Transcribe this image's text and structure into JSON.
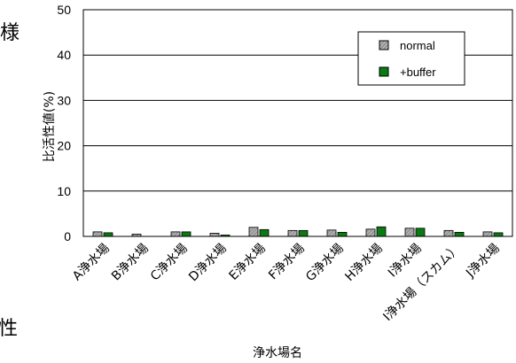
{
  "page": {
    "edge_text_top": "様",
    "edge_text_bottom": "性"
  },
  "chart_data": {
    "type": "bar",
    "xlabel": "浄水場名",
    "ylabel": "比活性値(%)",
    "ylim": [
      0,
      50
    ],
    "yticks": [
      "0",
      "10",
      "20",
      "30",
      "40",
      "50"
    ],
    "grid": true,
    "legend_position": "top-right",
    "categories": [
      "A浄水場",
      "B浄水場",
      "C浄水場",
      "D浄水場",
      "E浄水場",
      "F浄水場",
      "G浄水場",
      "H浄水場",
      "I浄水場",
      "I浄水場（スカム）",
      "J浄水場"
    ],
    "series": [
      {
        "name": "normal",
        "color": "#a8a8a8",
        "pattern": "hatched-gray",
        "values": [
          1.0,
          0.5,
          1.0,
          0.7,
          2.0,
          1.3,
          1.4,
          1.6,
          1.8,
          1.3,
          1.0
        ]
      },
      {
        "name": "+buffer",
        "color": "#0a7a12",
        "pattern": "solid-green",
        "values": [
          0.8,
          0.0,
          1.0,
          0.3,
          1.5,
          1.3,
          0.9,
          2.1,
          1.8,
          0.9,
          0.8
        ]
      }
    ]
  }
}
